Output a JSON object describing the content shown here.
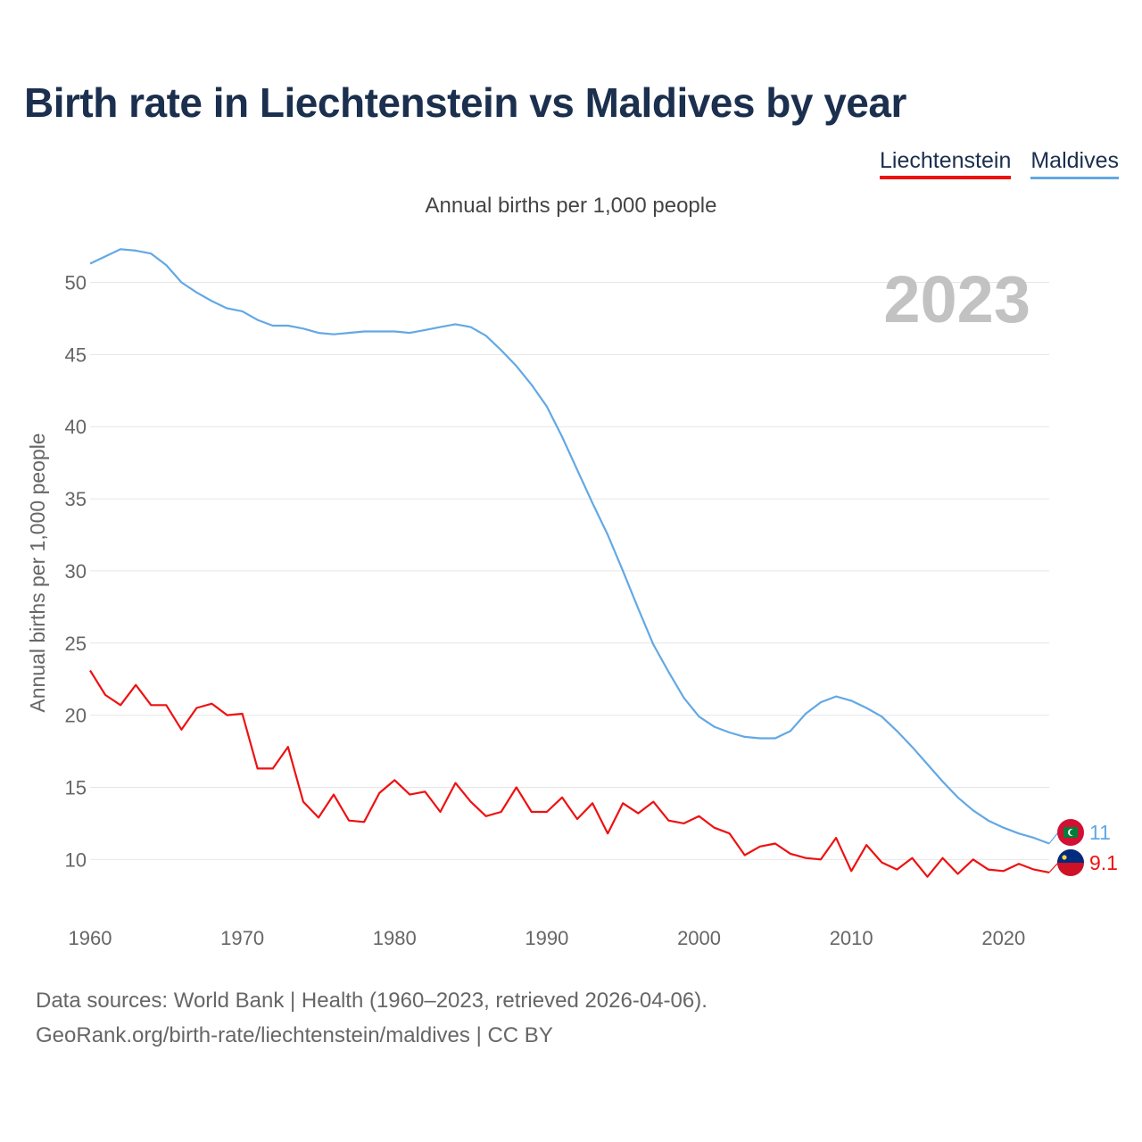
{
  "title": "Birth rate in Liechtenstein vs Maldives by year",
  "legend": [
    "Liechtenstein",
    "Maldives"
  ],
  "subtitle": "Annual births per 1,000 people",
  "footer": {
    "line1": "Data sources: World Bank | Health (1960–2023, retrieved 2026-04-06).",
    "line2": "GeoRank.org/birth-rate/liechtenstein/maldives | CC BY"
  },
  "colors": {
    "liechtenstein": "#ee1111",
    "maldives": "#62a8e5",
    "title": "#1b2f4e"
  },
  "chart_data": {
    "type": "line",
    "title": "Birth rate in Liechtenstein vs Maldives by year",
    "ylabel": "Annual births per 1,000 people",
    "xlabel": "",
    "year_label": "2023",
    "xlim": [
      1960,
      2023
    ],
    "ylim": [
      6,
      53
    ],
    "xticks": [
      1960,
      1970,
      1980,
      1990,
      2000,
      2010,
      2020
    ],
    "yticks": [
      10,
      15,
      20,
      25,
      30,
      35,
      40,
      45,
      50
    ],
    "grid": true,
    "legend_position": "top-right",
    "x": [
      1960,
      1961,
      1962,
      1963,
      1964,
      1965,
      1966,
      1967,
      1968,
      1969,
      1970,
      1971,
      1972,
      1973,
      1974,
      1975,
      1976,
      1977,
      1978,
      1979,
      1980,
      1981,
      1982,
      1983,
      1984,
      1985,
      1986,
      1987,
      1988,
      1989,
      1990,
      1991,
      1992,
      1993,
      1994,
      1995,
      1996,
      1997,
      1998,
      1999,
      2000,
      2001,
      2002,
      2003,
      2004,
      2005,
      2006,
      2007,
      2008,
      2009,
      2010,
      2011,
      2012,
      2013,
      2014,
      2015,
      2016,
      2017,
      2018,
      2019,
      2020,
      2021,
      2022,
      2023
    ],
    "series": [
      {
        "name": "Liechtenstein",
        "color": "#ee1111",
        "end_label": "9.1",
        "values": [
          23.1,
          21.4,
          20.7,
          22.1,
          20.7,
          20.7,
          19.0,
          20.5,
          20.8,
          20.0,
          20.1,
          16.3,
          16.3,
          17.8,
          14.0,
          12.9,
          14.5,
          12.7,
          12.6,
          14.6,
          15.5,
          14.5,
          14.7,
          13.3,
          15.3,
          14.0,
          13.0,
          13.3,
          15.0,
          13.3,
          13.3,
          14.3,
          12.8,
          13.9,
          11.8,
          13.9,
          13.2,
          14.0,
          12.7,
          12.5,
          13.0,
          12.2,
          11.8,
          10.3,
          10.9,
          11.1,
          10.4,
          10.1,
          10.0,
          11.5,
          9.2,
          11.0,
          9.8,
          9.3,
          10.1,
          8.8,
          10.1,
          9.0,
          10.0,
          9.3,
          9.2,
          9.7,
          9.3,
          9.1
        ]
      },
      {
        "name": "Maldives",
        "color": "#62a8e5",
        "end_label": "11",
        "values": [
          51.3,
          51.8,
          52.3,
          52.2,
          52.0,
          51.2,
          50.0,
          49.3,
          48.7,
          48.2,
          48.0,
          47.4,
          47.0,
          47.0,
          46.8,
          46.5,
          46.4,
          46.5,
          46.6,
          46.6,
          46.6,
          46.5,
          46.7,
          46.9,
          47.1,
          46.9,
          46.3,
          45.3,
          44.2,
          42.9,
          41.4,
          39.3,
          37.0,
          34.7,
          32.5,
          30.0,
          27.4,
          24.9,
          23.0,
          21.2,
          19.9,
          19.2,
          18.8,
          18.5,
          18.4,
          18.4,
          18.9,
          20.1,
          20.9,
          21.3,
          21.0,
          20.5,
          19.9,
          18.9,
          17.8,
          16.6,
          15.4,
          14.3,
          13.4,
          12.7,
          12.2,
          11.8,
          11.5,
          11.1
        ]
      }
    ]
  }
}
